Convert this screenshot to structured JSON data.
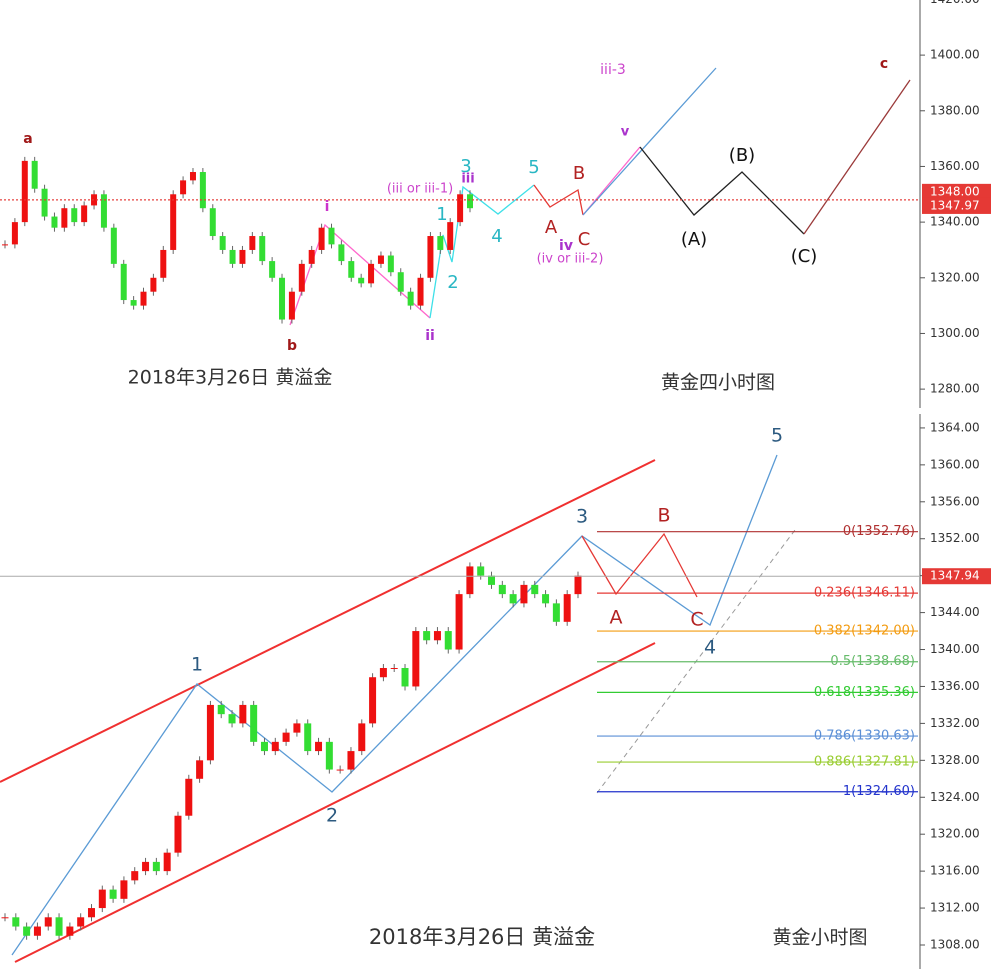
{
  "panels": [
    {
      "type": "candlestick",
      "caption": "2018年3月26日 黄溢金",
      "title": "黄金四小时图",
      "ylim": [
        1272.5,
        1419.8
      ],
      "yticks": [
        {
          "value": 1280,
          "label": "1280.00"
        },
        {
          "value": 1300,
          "label": "1300.00"
        },
        {
          "value": 1320,
          "label": "1320.00"
        },
        {
          "value": 1340,
          "label": "1340.00"
        },
        {
          "value": 1360,
          "label": "1360.00"
        },
        {
          "value": 1380,
          "label": "1380.00"
        },
        {
          "value": 1400,
          "label": "1400.00"
        },
        {
          "value": 1420,
          "label": "1420.00"
        }
      ],
      "price_labels": [
        {
          "value": 1348.0,
          "label": "1348.00"
        },
        {
          "value": 1347.97,
          "label": "1347.97"
        }
      ],
      "closes": [
        1332,
        1340,
        1362,
        1352,
        1342,
        1338,
        1345,
        1340,
        1346,
        1350,
        1338,
        1325,
        1312,
        1310,
        1315,
        1320,
        1330,
        1350,
        1355,
        1358,
        1345,
        1335,
        1330,
        1325,
        1330,
        1335,
        1326,
        1320,
        1305,
        1315,
        1325,
        1330,
        1338,
        1332,
        1326,
        1320,
        1318,
        1325,
        1328,
        1322,
        1315,
        1310,
        1320,
        1335,
        1330,
        1340,
        1350,
        1345
      ],
      "annotations": [
        "a",
        "b",
        "i",
        "ii",
        "(iii or iii-1)",
        "1",
        "2",
        "3",
        "iii",
        "4",
        "5",
        "A",
        "B",
        "C",
        "iv",
        "(iv or iii-2)",
        "iii-3",
        "v",
        "(A)",
        "(B)",
        "(C)",
        "c"
      ]
    },
    {
      "type": "candlestick",
      "caption": "2018年3月26日 黄溢金",
      "title": "黄金小时图",
      "ylim": [
        1305.4,
        1365.4
      ],
      "yticks": [
        {
          "value": 1308,
          "label": "1308.00"
        },
        {
          "value": 1312,
          "label": "1312.00"
        },
        {
          "value": 1316,
          "label": "1316.00"
        },
        {
          "value": 1320,
          "label": "1320.00"
        },
        {
          "value": 1324,
          "label": "1324.00"
        },
        {
          "value": 1328,
          "label": "1328.00"
        },
        {
          "value": 1332,
          "label": "1332.00"
        },
        {
          "value": 1336,
          "label": "1336.00"
        },
        {
          "value": 1340,
          "label": "1340.00"
        },
        {
          "value": 1344,
          "label": "1344.00"
        },
        {
          "value": 1348,
          "label": "1348.00"
        },
        {
          "value": 1352,
          "label": "1352.00"
        },
        {
          "value": 1356,
          "label": "1356.00"
        },
        {
          "value": 1360,
          "label": "1360.00"
        },
        {
          "value": 1364,
          "label": "1364.00"
        }
      ],
      "price_labels": [
        {
          "value": 1347.94,
          "label": "1347.94"
        }
      ],
      "closes": [
        1311,
        1310,
        1309,
        1310,
        1311,
        1309,
        1310,
        1311,
        1312,
        1314,
        1313,
        1315,
        1316,
        1317,
        1316,
        1318,
        1322,
        1326,
        1328,
        1334,
        1333,
        1332,
        1334,
        1330,
        1329,
        1330,
        1331,
        1332,
        1329,
        1330,
        1327,
        1327,
        1329,
        1332,
        1337,
        1338,
        1338,
        1336,
        1342,
        1341,
        1342,
        1340,
        1346,
        1349,
        1348,
        1347,
        1346,
        1345,
        1347,
        1346,
        1345,
        1343,
        1346,
        1348
      ],
      "annotations": [
        "1",
        "2",
        "3",
        "4",
        "5",
        "A",
        "B",
        "C"
      ],
      "fib_levels": [
        {
          "label": "0(1352.76)",
          "value": 1352.76,
          "color": "#b03030"
        },
        {
          "label": "0.236(1346.11)",
          "value": 1346.11,
          "color": "#e53935"
        },
        {
          "label": "0.382(1342.00)",
          "value": 1342.0,
          "color": "#f39c12"
        },
        {
          "label": "0.5(1338.68)",
          "value": 1338.68,
          "color": "#66bb6a"
        },
        {
          "label": "0.618(1335.36)",
          "value": 1335.36,
          "color": "#33cc33"
        },
        {
          "label": "0.786(1330.63)",
          "value": 1330.63,
          "color": "#5b8fd6"
        },
        {
          "label": "0.886(1327.81)",
          "value": 1327.81,
          "color": "#9acd32"
        },
        {
          "label": "1(1324.60)",
          "value": 1324.6,
          "color": "#2233cc"
        }
      ]
    }
  ]
}
